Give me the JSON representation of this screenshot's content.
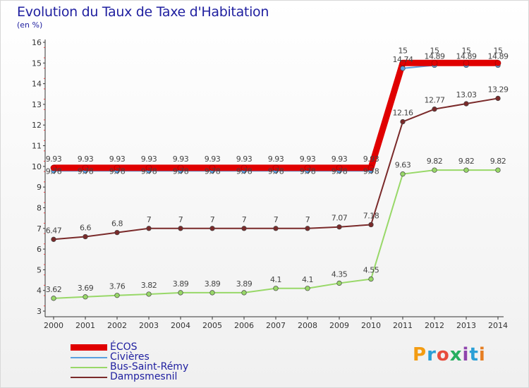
{
  "header": {
    "title": "Evolution du Taux de Taxe d'Habitation",
    "subtitle": "(en %)"
  },
  "brand": {
    "text": "Proxiti",
    "colors": [
      "#f39c12",
      "#2a9fd6",
      "#e74c3c",
      "#27ae60",
      "#8e44ad",
      "#2a9fd6",
      "#e67e22"
    ]
  },
  "chart_data": {
    "type": "line",
    "x": [
      "2000",
      "2001",
      "2002",
      "2003",
      "2004",
      "2005",
      "2006",
      "2007",
      "2008",
      "2009",
      "2010",
      "2011",
      "2012",
      "2013",
      "2014"
    ],
    "ylim": [
      3,
      16
    ],
    "yticks": [
      3,
      4,
      5,
      6,
      7,
      8,
      9,
      10,
      11,
      12,
      13,
      14,
      15,
      16
    ],
    "grid": false,
    "legend_position": "bottom-left",
    "series": [
      {
        "name": "ÉCOS",
        "color": "#e00000",
        "values": [
          9.93,
          9.93,
          9.93,
          9.93,
          9.93,
          9.93,
          9.93,
          9.93,
          9.93,
          9.93,
          9.93,
          15,
          15,
          15,
          15
        ],
        "labels": [
          "9.93",
          "9.93",
          "9.93",
          "9.93",
          "9.93",
          "9.93",
          "9.93",
          "9.93",
          "9.93",
          "9.93",
          "9.93",
          "15",
          "15",
          "15",
          "15"
        ]
      },
      {
        "name": "Civières",
        "color": "#5aa0e0",
        "values": [
          9.78,
          9.78,
          9.78,
          9.78,
          9.78,
          9.78,
          9.78,
          9.78,
          9.78,
          9.78,
          9.78,
          14.74,
          14.89,
          14.89,
          14.89
        ],
        "labels": [
          "9.78",
          "9.78",
          "9.78",
          "9.78",
          "9.78",
          "9.78",
          "9.78",
          "9.78",
          "9.78",
          "9.78",
          "9.78",
          "14.74",
          "14.89",
          "14.89",
          "14.89"
        ]
      },
      {
        "name": "Bus-Saint-Rémy",
        "color": "#98d868",
        "values": [
          3.62,
          3.69,
          3.76,
          3.82,
          3.89,
          3.89,
          3.89,
          4.1,
          4.1,
          4.35,
          4.55,
          9.63,
          9.82,
          9.82,
          9.82
        ],
        "labels": [
          "3.62",
          "3.69",
          "3.76",
          "3.82",
          "3.89",
          "3.89",
          "3.89",
          "4.1",
          "4.1",
          "4.35",
          "4.55",
          "9.63",
          "9.82",
          "9.82",
          "9.82"
        ]
      },
      {
        "name": "Dampsmesnil",
        "color": "#7a2a2a",
        "values": [
          6.47,
          6.6,
          6.8,
          7,
          7,
          7,
          7,
          7,
          7,
          7.07,
          7.18,
          12.16,
          12.77,
          13.03,
          13.29
        ],
        "labels": [
          "6.47",
          "6.6",
          "6.8",
          "7",
          "7",
          "7",
          "7",
          "7",
          "7",
          "7.07",
          "7.18",
          "12.16",
          "12.77",
          "13.03",
          "13.29"
        ]
      }
    ]
  }
}
